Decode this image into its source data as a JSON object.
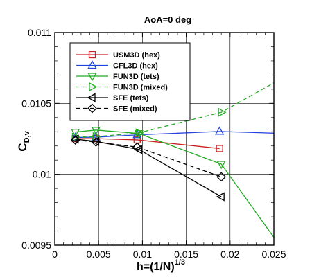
{
  "chart_data": {
    "type": "line",
    "title": "AoA=0 deg",
    "xlabel": {
      "main": "h=(1/N)",
      "sup": "1/3"
    },
    "ylabel": {
      "main": "C",
      "sub": "D,v"
    },
    "xlim": [
      0,
      0.025
    ],
    "ylim": [
      0.0095,
      0.011
    ],
    "xticks": [
      "0",
      "0.005",
      "0.01",
      "0.015",
      "0.02",
      "0.025"
    ],
    "yticks": [
      "0.0095",
      "0.01",
      "0.0105",
      "0.011"
    ],
    "grid": true,
    "legend_position": "top-left",
    "series": [
      {
        "name": "USM3D (hex)",
        "color": "#cc2222",
        "marker": "square",
        "dash": false,
        "points": [
          [
            0.00235,
            0.010252
          ],
          [
            0.0047,
            0.010252
          ],
          [
            0.0094,
            0.010243
          ],
          [
            0.0188,
            0.010182
          ]
        ]
      },
      {
        "name": "CFL3D (hex)",
        "color": "#2244dd",
        "marker": "triangle-up",
        "dash": false,
        "points": [
          [
            0.00235,
            0.01026
          ],
          [
            0.0047,
            0.010262
          ],
          [
            0.0094,
            0.010278
          ],
          [
            0.0188,
            0.010302
          ],
          [
            0.025,
            0.01029
          ]
        ],
        "markers_at": [
          0,
          1,
          2,
          3
        ]
      },
      {
        "name": "FUN3D (tets)",
        "color": "#22aa22",
        "marker": "triangle-down",
        "dash": false,
        "points": [
          [
            0.00235,
            0.010298
          ],
          [
            0.0047,
            0.010312
          ],
          [
            0.0096,
            0.010288
          ],
          [
            0.019,
            0.010072
          ],
          [
            0.025,
            0.009555
          ]
        ],
        "markers_at": [
          0,
          1,
          2,
          3
        ]
      },
      {
        "name": "FUN3D (mixed)",
        "color": "#22aa22",
        "marker": "triangle-right",
        "dash": true,
        "points": [
          [
            0.00235,
            0.010262
          ],
          [
            0.0047,
            0.010265
          ],
          [
            0.0096,
            0.010292
          ],
          [
            0.019,
            0.010437
          ],
          [
            0.025,
            0.010645
          ]
        ],
        "markers_at": [
          0,
          1,
          2,
          3
        ]
      },
      {
        "name": "SFE (tets)",
        "color": "#000000",
        "marker": "triangle-left",
        "dash": false,
        "points": [
          [
            0.00235,
            0.010248
          ],
          [
            0.0047,
            0.010232
          ],
          [
            0.0096,
            0.010175
          ],
          [
            0.019,
            0.009842
          ]
        ]
      },
      {
        "name": "SFE (mixed)",
        "color": "#000000",
        "marker": "diamond",
        "dash": true,
        "points": [
          [
            0.00235,
            0.010242
          ],
          [
            0.0047,
            0.010228
          ],
          [
            0.0094,
            0.010192
          ],
          [
            0.019,
            0.009982
          ]
        ]
      }
    ]
  }
}
